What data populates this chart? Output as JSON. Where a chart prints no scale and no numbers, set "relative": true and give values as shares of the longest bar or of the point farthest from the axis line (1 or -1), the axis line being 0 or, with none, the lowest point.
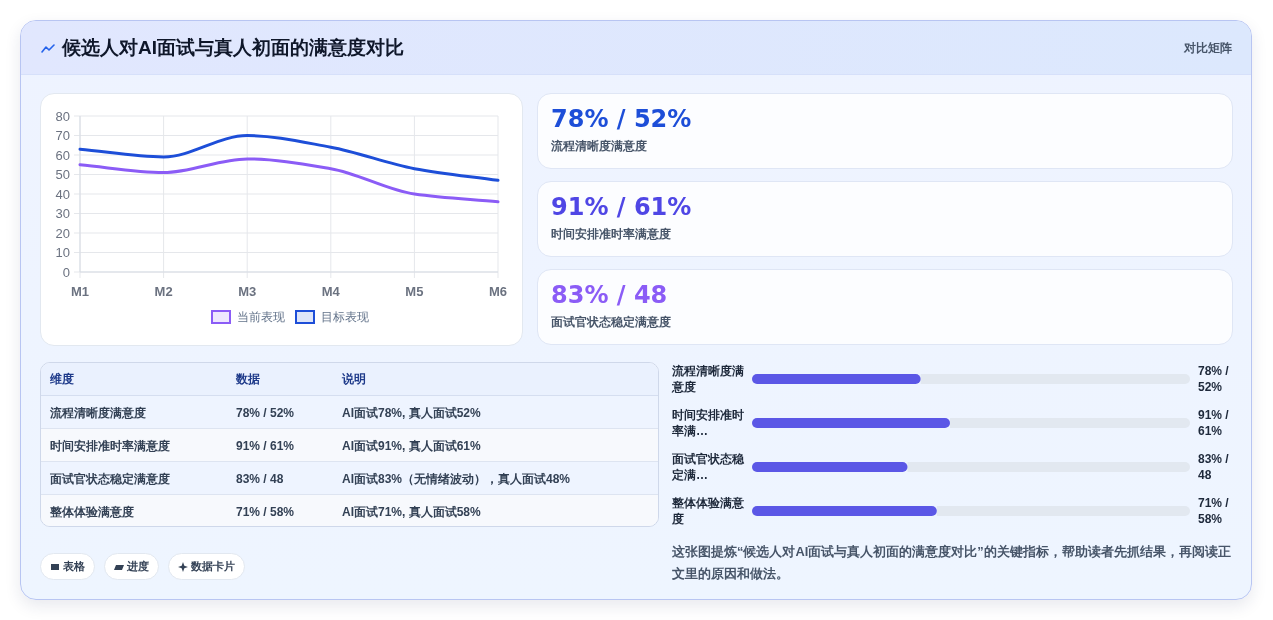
{
  "chart_data": [
    {
      "type": "line",
      "title": "候选人对AI面试与真人初面的满意度对比",
      "categories": [
        "M1",
        "M2",
        "M3",
        "M4",
        "M5",
        "M6"
      ],
      "series": [
        {
          "name": "当前表现",
          "color": "#8b5cf6",
          "values": [
            55,
            51,
            58,
            53,
            40,
            36
          ]
        },
        {
          "name": "目标表现",
          "color": "#1d4ed8",
          "values": [
            63,
            59,
            70,
            64,
            53,
            47
          ]
        }
      ],
      "ylim": [
        0,
        80
      ],
      "yticks": [
        0,
        10,
        20,
        30,
        40,
        50,
        60,
        70,
        80
      ],
      "grid": true,
      "legend": "bottom"
    },
    {
      "type": "other",
      "subtitle": "对比矩阵",
      "categories": [
        "流程清晰度满意度",
        "时间安排准时率满意度",
        "面试官状态稳定满意度"
      ],
      "value_labels": [
        "78% / 52%",
        "91% / 61%",
        "83% / 48"
      ]
    },
    {
      "type": "other",
      "categories": [
        "维度",
        "数据",
        "说明"
      ],
      "y_categories": [
        "流程清晰度满意度",
        "时间安排准时率满意度",
        "面试官状态稳定满意度",
        "整体体验满意度"
      ],
      "cell_labels": [
        [
          "78% / 52%",
          "AI面试78%, 真人面试52%"
        ],
        [
          "91% / 61%",
          "AI面试91%, 真人面试61%"
        ],
        [
          "83% / 48",
          "AI面试83%（无情绪波动），真人面试48%"
        ],
        [
          "71% / 58%",
          "AI面试71%, 真人面试58%"
        ]
      ],
      "annotations": [
        "表格",
        "进度",
        "数据卡片"
      ]
    },
    {
      "type": "bar",
      "orientation": "horizontal",
      "stacked": true,
      "relative": true,
      "categories": [
        "流程清晰度满意度",
        "时间安排准时率满…",
        "面试官状态稳定满…",
        "整体体验满意度"
      ],
      "series": [
        {
          "color": "#5b57e6",
          "values": [
            0.385,
            0.452,
            0.355,
            0.422
          ]
        },
        {
          "color": "#e2e8f0",
          "values": [
            0.615,
            0.548,
            0.645,
            0.578
          ]
        }
      ],
      "annotations": [
        "78% / 52%",
        "91% / 61%",
        "83% / 48",
        "71% / 58%",
        "这张图提炼“候选人对AI面试与真人初面的满意度对比”的关键指标，帮助读者先抓结果，再阅读正文里的原因和做法。"
      ]
    }
  ]
}
